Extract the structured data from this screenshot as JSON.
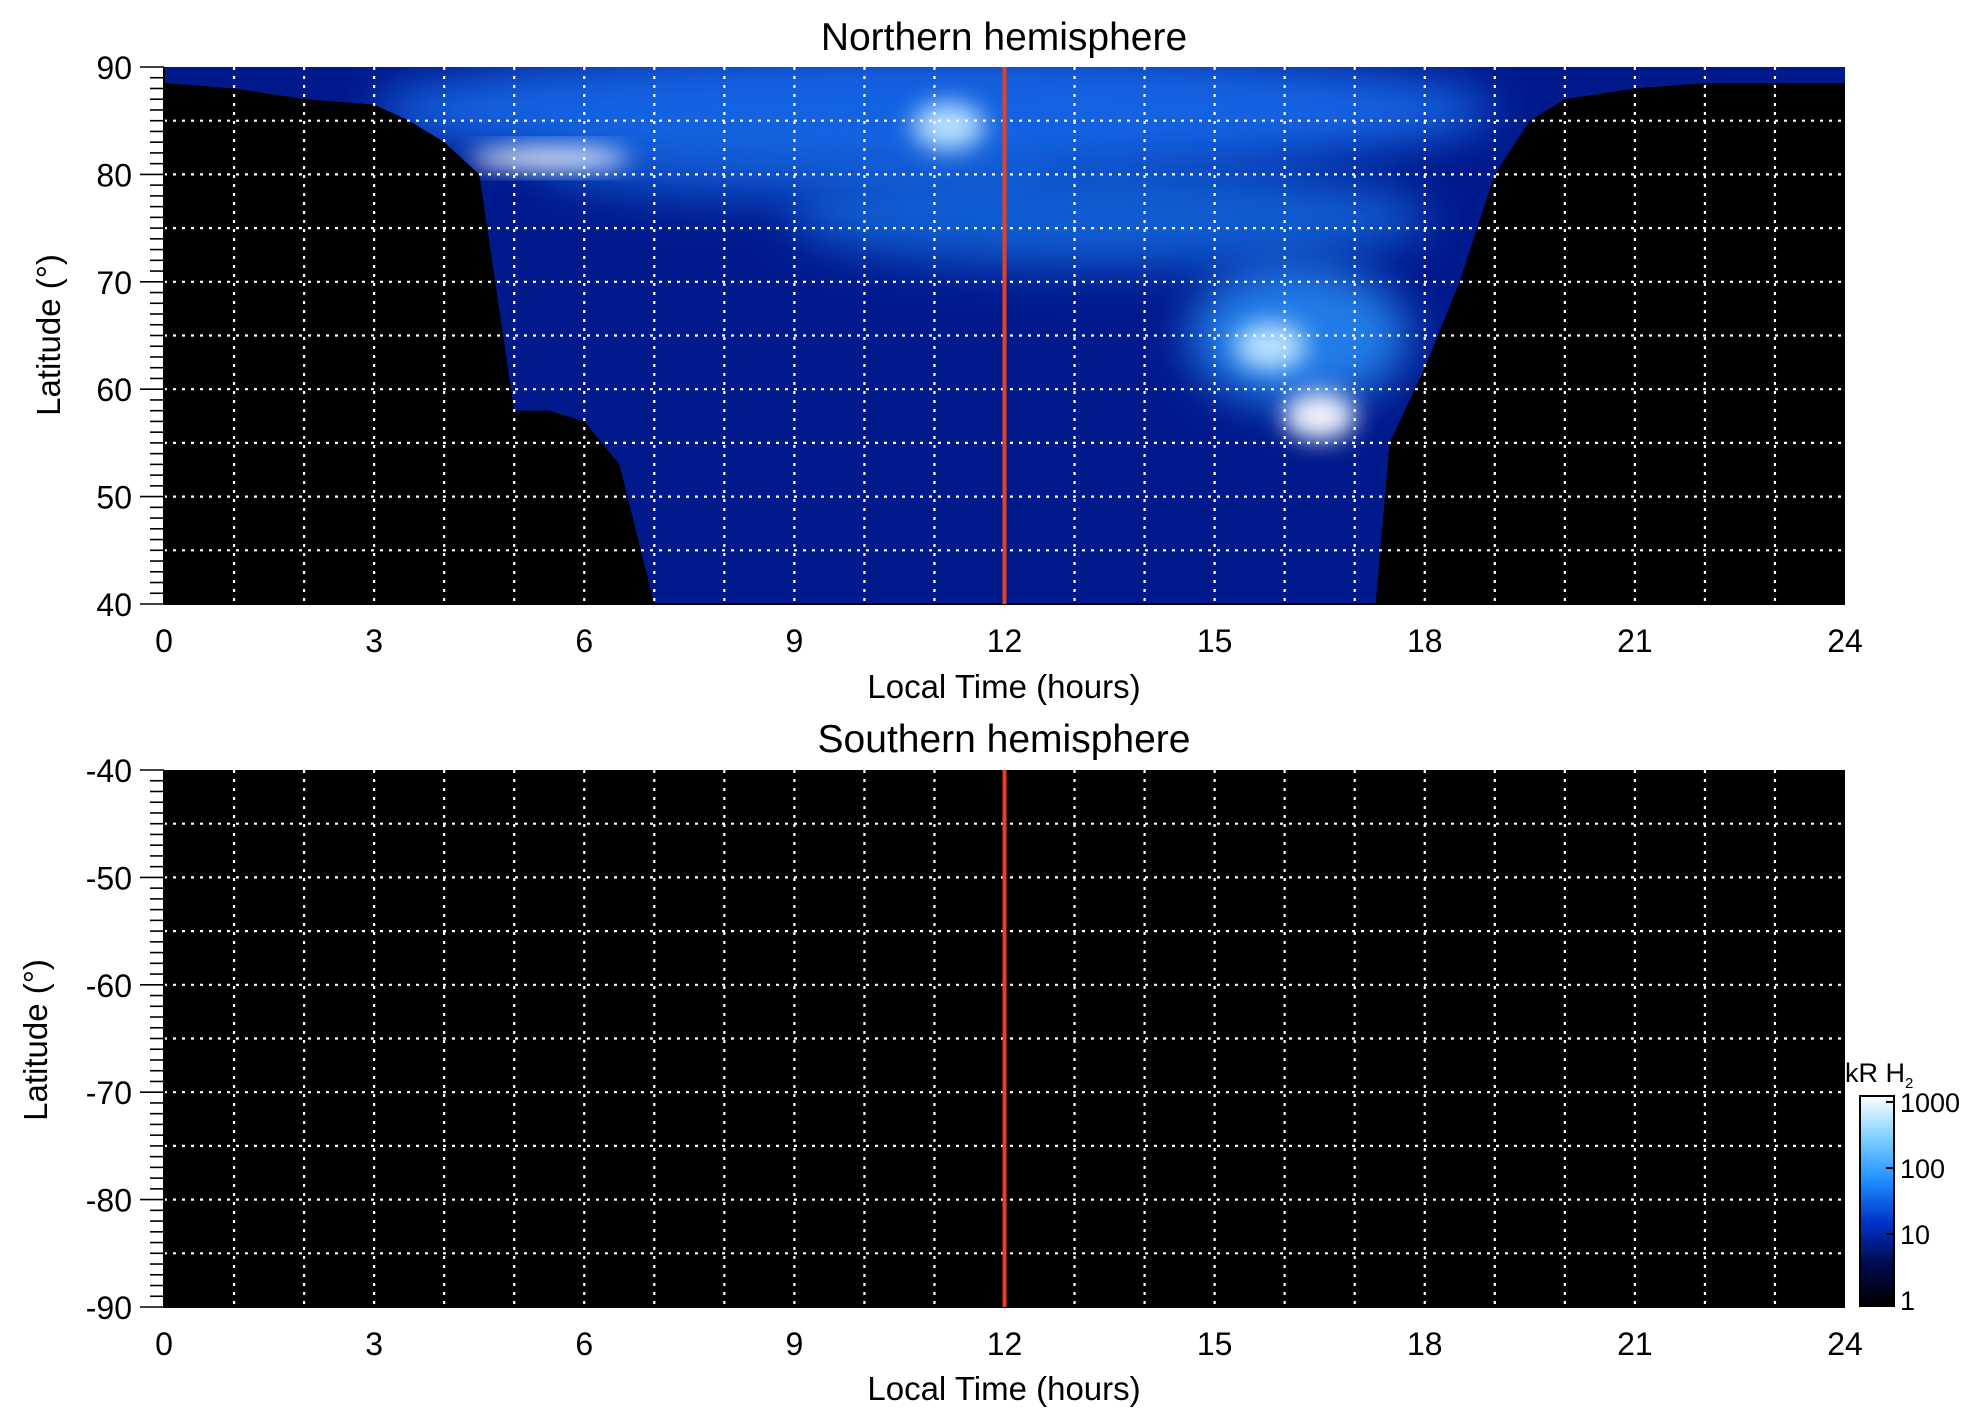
{
  "chart_data": [
    {
      "type": "heatmap",
      "title": "Northern hemisphere",
      "xlabel": "Local Time (hours)",
      "ylabel": "Latitude (°)",
      "xlim": [
        0,
        24
      ],
      "ylim": [
        40,
        90
      ],
      "xticks": [
        0,
        3,
        6,
        9,
        12,
        15,
        18,
        21,
        24
      ],
      "yticks": [
        40,
        50,
        60,
        70,
        80,
        90
      ],
      "xgrid_step": 1,
      "ygrid_step": 5,
      "grid": true,
      "marker_line": {
        "x": 12,
        "color": "#e8401c"
      },
      "background": "#000000",
      "boundary": {
        "description_units": "latitude of lower edge of the emission region vs local time",
        "x": [
          0,
          1,
          2,
          3,
          3.5,
          4,
          4.5,
          5,
          5.5,
          6,
          6.5,
          7,
          7.5,
          8,
          10,
          12,
          14,
          16,
          16.8,
          17,
          17.3,
          17.5,
          18,
          18.5,
          19,
          19.5,
          20,
          21,
          22,
          23,
          24
        ],
        "y": [
          88.5,
          88.0,
          87.0,
          86.5,
          85.0,
          83.0,
          80.0,
          58.0,
          58.0,
          57.0,
          53.0,
          40.0,
          40.0,
          40.0,
          40.0,
          40.0,
          40.0,
          40.0,
          40.0,
          40.0,
          40.0,
          55.0,
          62.0,
          70.0,
          80.0,
          85.0,
          87.0,
          88.0,
          88.5,
          88.5,
          88.5
        ]
      },
      "bright_features": [
        {
          "lt": 5.5,
          "lat": 81.5,
          "level": 1000
        },
        {
          "lt": 11.2,
          "lat": 84.5,
          "level": 800
        },
        {
          "lt": 16.5,
          "lat": 57.5,
          "level": 1000
        },
        {
          "lt": 15.8,
          "lat": 64.0,
          "level": 700
        }
      ]
    },
    {
      "type": "heatmap",
      "title": "Southern hemisphere",
      "xlabel": "Local Time (hours)",
      "ylabel": "Latitude (°)",
      "xlim": [
        0,
        24
      ],
      "ylim": [
        -90,
        -40
      ],
      "xticks": [
        0,
        3,
        6,
        9,
        12,
        15,
        18,
        21,
        24
      ],
      "yticks": [
        -40,
        -50,
        -60,
        -70,
        -80,
        -90
      ],
      "xgrid_step": 1,
      "ygrid_step": 5,
      "grid": true,
      "marker_line": {
        "x": 12,
        "color": "#e8401c"
      },
      "background": "#000000",
      "empty": true
    }
  ],
  "colorbar": {
    "title": "kR H",
    "subscript": "2",
    "scale": "log",
    "range": [
      1,
      1000
    ],
    "ticks": [
      "1000",
      "100",
      "10",
      "1"
    ],
    "colors": [
      "#000000",
      "#000a4d",
      "#0033cc",
      "#1e90ff",
      "#7fd0ff",
      "#ffffff"
    ]
  }
}
